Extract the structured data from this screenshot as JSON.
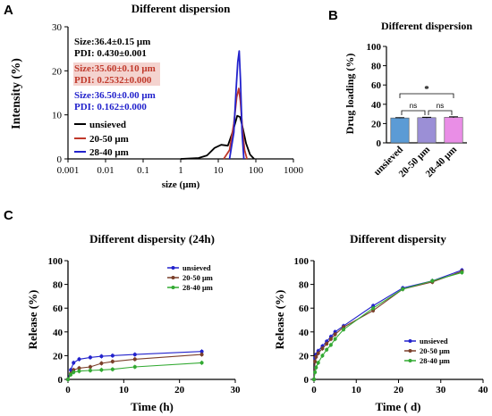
{
  "panel_letters": {
    "a": "A",
    "b": "B",
    "c": "C"
  },
  "chart_data": [
    {
      "type": "line",
      "panel": "A",
      "title": "Different dispersion",
      "xlabel": "size (μm)",
      "ylabel": "Intensity (%)",
      "xscale": "log",
      "xlim": [
        0.001,
        1000
      ],
      "ylim": [
        0,
        30
      ],
      "xticks": [
        "0.001",
        "0.01",
        "0.1",
        "1",
        "10",
        "100",
        "1000"
      ],
      "yticks": [
        "0",
        "10",
        "20",
        "30"
      ],
      "legend": {
        "placement": "right",
        "entries": [
          "unsieved",
          "20-50 μm",
          "28-40 μm"
        ]
      },
      "annotations": [
        {
          "size": "Size:36.4±0.15 μm",
          "pdi": "PDI: 0.430±0.001",
          "color": "#000000",
          "bg": "none"
        },
        {
          "size": "Size:35.60±0.10 μm",
          "pdi": "PDI: 0.2532±0.000",
          "color": "#c0392b",
          "bg": "#f4d3cf"
        },
        {
          "size": "Size:36.50±0.00 μm",
          "pdi": "PDI: 0.162±0.000",
          "color": "#2222cc",
          "bg": "none"
        }
      ],
      "series": [
        {
          "name": "unsieved",
          "color": "#000000",
          "x": [
            1,
            3,
            5,
            8,
            12,
            18,
            25,
            32,
            38,
            45,
            55,
            70,
            90
          ],
          "y": [
            0,
            0.2,
            0.8,
            2.5,
            3.2,
            3.0,
            6.5,
            9.8,
            9.5,
            7.0,
            3.5,
            1.0,
            0
          ]
        },
        {
          "name": "20-50 μm",
          "color": "#c0392b",
          "x": [
            14,
            20,
            26,
            31,
            35,
            39,
            44,
            50,
            58
          ],
          "y": [
            0,
            2.0,
            8.0,
            14.0,
            16.0,
            13.0,
            7.0,
            2.0,
            0
          ]
        },
        {
          "name": "28-40 μm",
          "color": "#2222cc",
          "x": [
            20,
            26,
            30,
            33,
            36,
            39,
            43,
            48
          ],
          "y": [
            0,
            6.0,
            16.0,
            22.0,
            24.5,
            18.0,
            6.0,
            0
          ]
        }
      ]
    },
    {
      "type": "bar",
      "panel": "B",
      "title": "Different dispersion",
      "ylabel": "Drug loading (%)",
      "ylim": [
        0,
        100
      ],
      "yticks": [
        "0",
        "20",
        "40",
        "60",
        "80",
        "100"
      ],
      "categories": [
        "unsieved",
        "20-50 μm",
        "28-40 μm"
      ],
      "values": [
        25.8,
        26.1,
        26.5
      ],
      "errors": [
        0.3,
        0.4,
        0.5
      ],
      "colors": [
        "#5b9bd5",
        "#9b8fd6",
        "#e98ee6"
      ],
      "significance": [
        {
          "from": 0,
          "to": 1,
          "label": "ns"
        },
        {
          "from": 1,
          "to": 2,
          "label": "ns"
        },
        {
          "from": 0,
          "to": 2,
          "label": "*"
        }
      ]
    },
    {
      "type": "line",
      "panel": "C",
      "title": "Different dispersity (24h)",
      "xlabel": "Time (h)",
      "ylabel": "Release (%)",
      "xlim": [
        0,
        30
      ],
      "ylim": [
        0,
        100
      ],
      "xticks": [
        "0",
        "10",
        "20",
        "30"
      ],
      "yticks": [
        "0",
        "20",
        "40",
        "60",
        "80",
        "100"
      ],
      "legend": {
        "placement": "top-right",
        "entries": [
          "unsieved",
          "20-50 μm",
          "28-40 μm"
        ]
      },
      "series": [
        {
          "name": "unsieved",
          "color": "#2222cc",
          "x": [
            0,
            0.5,
            1,
            2,
            4,
            6,
            8,
            12,
            24
          ],
          "y": [
            0,
            8,
            14,
            17,
            18.5,
            19.5,
            20,
            21,
            23.5
          ]
        },
        {
          "name": "20-50 μm",
          "color": "#7b3f2a",
          "x": [
            0,
            0.5,
            1,
            2,
            4,
            6,
            8,
            12,
            24
          ],
          "y": [
            0,
            5,
            8,
            9.5,
            10.5,
            13.5,
            15,
            17,
            21
          ]
        },
        {
          "name": "28-40 μm",
          "color": "#33aa33",
          "x": [
            0,
            0.5,
            1,
            2,
            4,
            6,
            8,
            12,
            24
          ],
          "y": [
            0,
            4,
            6,
            7,
            7.5,
            8,
            8.5,
            10.5,
            14
          ]
        }
      ]
    },
    {
      "type": "line",
      "panel": "C",
      "title": "Different dispersity",
      "xlabel": "Time ( d)",
      "ylabel": "Release (%)",
      "xlim": [
        0,
        40
      ],
      "ylim": [
        0,
        100
      ],
      "xticks": [
        "0",
        "10",
        "20",
        "30",
        "40"
      ],
      "yticks": [
        "0",
        "20",
        "40",
        "60",
        "80",
        "100"
      ],
      "legend": {
        "placement": "bottom-right",
        "entries": [
          "unsieved",
          "20-50 μm",
          "28-40 μm"
        ]
      },
      "series": [
        {
          "name": "unsieved",
          "color": "#2222cc",
          "x": [
            0,
            0.25,
            0.5,
            1,
            2,
            3,
            4,
            5,
            7,
            14,
            21,
            28,
            35
          ],
          "y": [
            0,
            18,
            21,
            24,
            28,
            32,
            36,
            40,
            45,
            62,
            77,
            83,
            92
          ]
        },
        {
          "name": "20-50 μm",
          "color": "#7b3f2a",
          "x": [
            0,
            0.25,
            0.5,
            1,
            2,
            3,
            4,
            5,
            7,
            14,
            21,
            28,
            35
          ],
          "y": [
            0,
            15,
            19,
            22,
            26,
            30,
            34,
            38,
            44,
            58,
            76,
            82,
            91
          ]
        },
        {
          "name": "28-40 μm",
          "color": "#33aa33",
          "x": [
            0,
            0.25,
            0.5,
            1,
            2,
            3,
            4,
            5,
            7,
            14,
            21,
            28,
            35
          ],
          "y": [
            0,
            6,
            10,
            14,
            20,
            25,
            29,
            34,
            42,
            60,
            76,
            83,
            90
          ]
        }
      ]
    }
  ]
}
